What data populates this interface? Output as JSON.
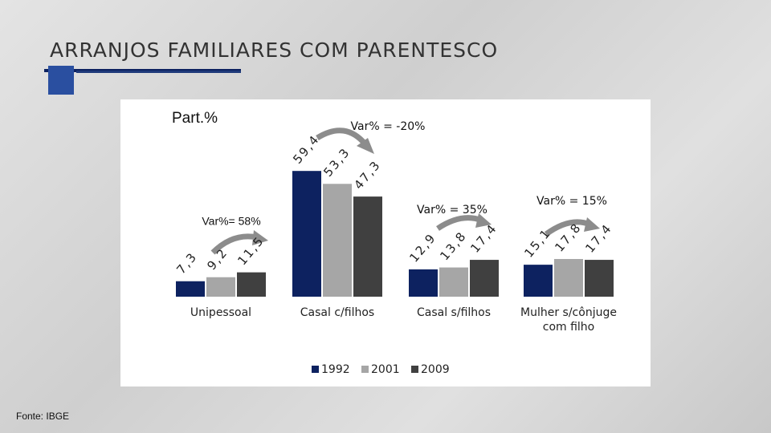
{
  "chart_data": {
    "type": "bar",
    "title": "ARRANJOS FAMILIARES COM PARENTESCO",
    "y_label": "Part.%",
    "source": "Fonte: IBGE",
    "categories": [
      "Unipessoal",
      "Casal c/filhos",
      "Casal s/filhos",
      "Mulher s/cônjuge com filho"
    ],
    "series": [
      {
        "name": "1992",
        "color": "#0d2260",
        "values": [
          7.3,
          59.4,
          12.9,
          15.1
        ],
        "value_labels": [
          "7,3",
          "59,4",
          "12,9",
          "15,1"
        ]
      },
      {
        "name": "2001",
        "color": "#a6a6a6",
        "values": [
          9.2,
          53.3,
          13.8,
          17.8
        ],
        "value_labels": [
          "9,2",
          "53,3",
          "13,8",
          "17,8"
        ]
      },
      {
        "name": "2009",
        "color": "#404040",
        "values": [
          11.5,
          47.3,
          17.4,
          17.4
        ],
        "value_labels": [
          "11,5",
          "47,3",
          "17,4",
          "17,4"
        ]
      }
    ],
    "annotations": [
      "Var%= 58%",
      "Var% = -20%",
      "Var% = 35%",
      "Var% = 15%"
    ]
  }
}
